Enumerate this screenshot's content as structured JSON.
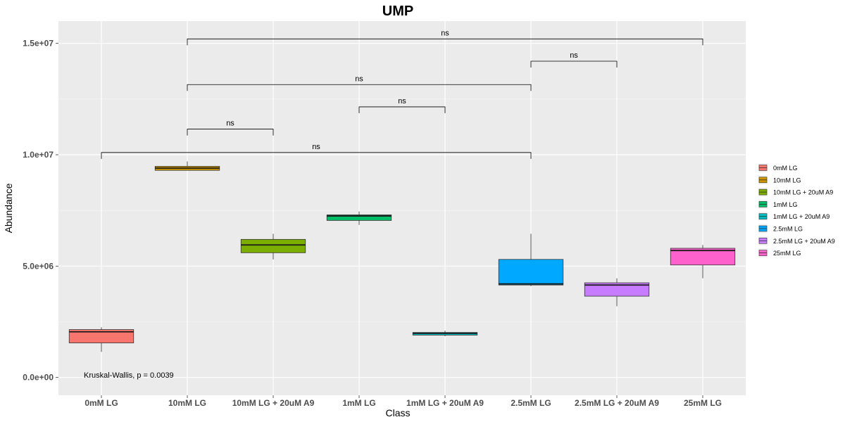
{
  "chart_data": {
    "type": "box",
    "title": "UMP",
    "xlabel": "Class",
    "ylabel": "Abundance",
    "ylim": [
      -800000,
      16000000
    ],
    "y_ticks": [
      {
        "value": 0,
        "label": "0.0e+00"
      },
      {
        "value": 5000000,
        "label": "5.0e+06"
      },
      {
        "value": 10000000,
        "label": "1.0e+07"
      },
      {
        "value": 15000000,
        "label": "1.5e+07"
      }
    ],
    "grid": true,
    "legend_position": "right",
    "categories": [
      "0mM LG",
      "10mM LG",
      "10mM LG + 20uM A9",
      "1mM LG",
      "1mM LG + 20uM A9",
      "2.5mM LG",
      "2.5mM LG + 20uM A9",
      "25mM LG"
    ],
    "boxes": [
      {
        "name": "0mM LG",
        "color": "#F8766D",
        "whisker_low": 1150000,
        "q1": 1550000,
        "median": 2050000,
        "q3": 2150000,
        "whisker_high": 2250000
      },
      {
        "name": "10mM LG",
        "color": "#CD9600",
        "whisker_low": 9300000,
        "q1": 9300000,
        "median": 9400000,
        "q3": 9480000,
        "whisker_high": 9700000
      },
      {
        "name": "10mM LG + 20uM A9",
        "color": "#7CAE00",
        "whisker_low": 5300000,
        "q1": 5600000,
        "median": 5950000,
        "q3": 6200000,
        "whisker_high": 6450000
      },
      {
        "name": "1mM LG",
        "color": "#00BE67",
        "whisker_low": 6850000,
        "q1": 7050000,
        "median": 7250000,
        "q3": 7300000,
        "whisker_high": 7450000
      },
      {
        "name": "1mM LG + 20uM A9",
        "color": "#00BFC4",
        "whisker_low": 1850000,
        "q1": 1900000,
        "median": 1980000,
        "q3": 2020000,
        "whisker_high": 2100000
      },
      {
        "name": "2.5mM LG",
        "color": "#00A9FF",
        "whisker_low": 4100000,
        "q1": 4150000,
        "median": 4200000,
        "q3": 5300000,
        "whisker_high": 6450000
      },
      {
        "name": "2.5mM LG + 20uM A9",
        "color": "#C77CFF",
        "whisker_low": 3200000,
        "q1": 3650000,
        "median": 4150000,
        "q3": 4250000,
        "whisker_high": 4450000
      },
      {
        "name": "25mM LG",
        "color": "#FF61CC",
        "whisker_low": 4450000,
        "q1": 5050000,
        "median": 5700000,
        "q3": 5800000,
        "whisker_high": 5950000
      }
    ],
    "comparisons": [
      {
        "from": "10mM LG",
        "to": "25mM LG",
        "y": 15200000,
        "label": "ns"
      },
      {
        "from": "2.5mM LG",
        "to": "2.5mM LG + 20uM A9",
        "y": 14200000,
        "label": "ns"
      },
      {
        "from": "10mM LG",
        "to": "2.5mM LG",
        "y": 13150000,
        "label": "ns"
      },
      {
        "from": "1mM LG",
        "to": "1mM LG + 20uM A9",
        "y": 12150000,
        "label": "ns"
      },
      {
        "from": "10mM LG",
        "to": "10mM LG + 20uM A9",
        "y": 11150000,
        "label": "ns"
      },
      {
        "from": "0mM LG",
        "to": "2.5mM LG",
        "y": 10100000,
        "label": "ns"
      }
    ],
    "annotation": "Kruskal-Wallis, p = 0.0039"
  }
}
